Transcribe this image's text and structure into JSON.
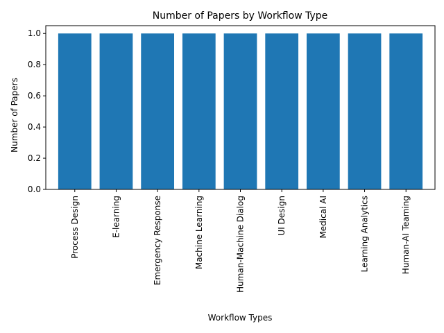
{
  "chart_data": {
    "type": "bar",
    "title": "Number of Papers by Workflow Type",
    "xlabel": "Workflow Types",
    "ylabel": "Number of Papers",
    "categories": [
      "Process Design",
      "E-learning",
      "Emergency Response",
      "Machine Learning",
      "Human-Machine Dialog",
      "UI Design",
      "Medical AI",
      "Learning Analytics",
      "Human-AI Teaming"
    ],
    "values": [
      1,
      1,
      1,
      1,
      1,
      1,
      1,
      1,
      1
    ],
    "ylim": [
      0,
      1.05
    ],
    "yticks": [
      0.0,
      0.2,
      0.4,
      0.6,
      0.8,
      1.0
    ],
    "ytick_labels": [
      "0.0",
      "0.2",
      "0.4",
      "0.6",
      "0.8",
      "1.0"
    ],
    "grid": false,
    "bar_color": "#1f77b4"
  }
}
